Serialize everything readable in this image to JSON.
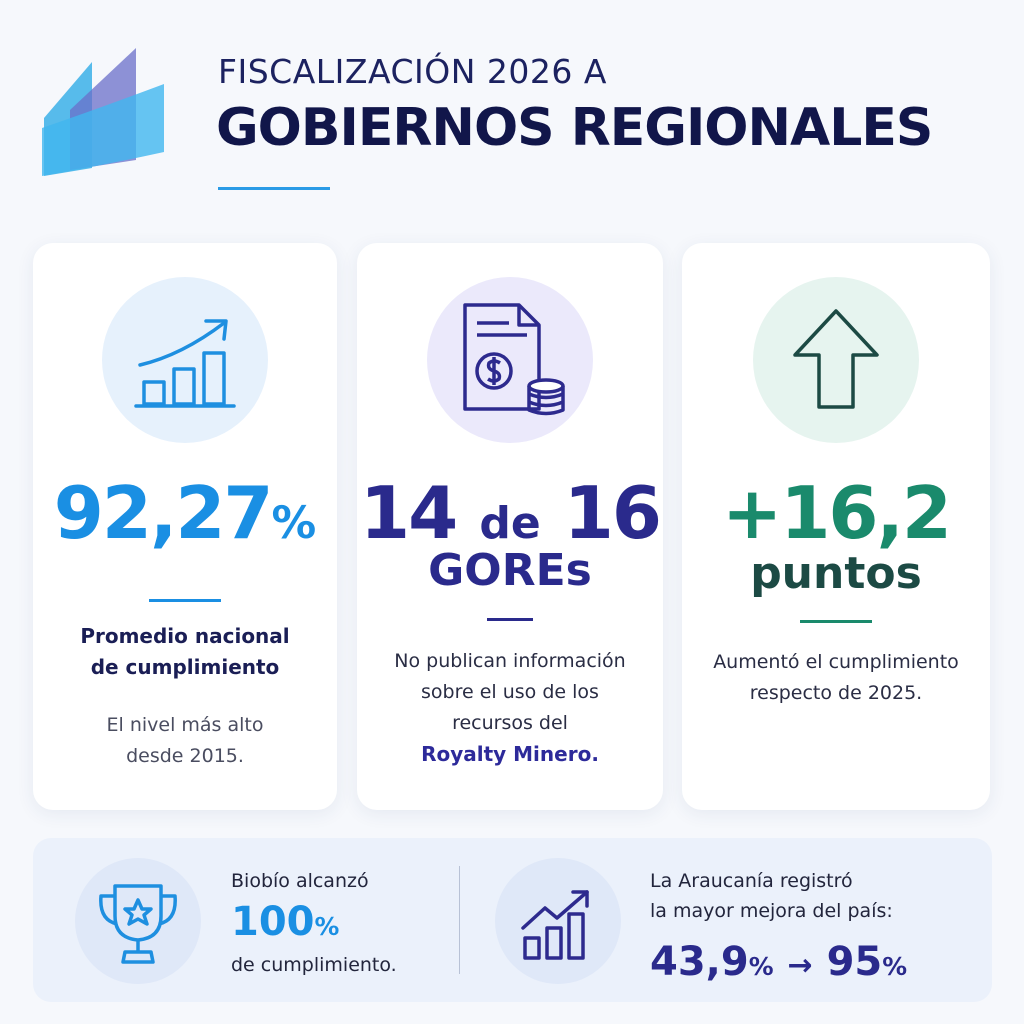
{
  "header": {
    "kicker": "FISCALIZACIÓN 2026 A",
    "title": "GOBIERNOS REGIONALES"
  },
  "cards": [
    {
      "stat": "92,27",
      "unit": "%",
      "label": [
        "Promedio nacional",
        "de cumplimiento"
      ],
      "note": [
        "El nivel más alto",
        "desde 2015."
      ]
    },
    {
      "stat": "14",
      "connector": "de",
      "stat_end": "16",
      "stat2": "GOREs",
      "body": [
        "No publican información",
        "sobre el uso de los",
        "recursos del"
      ],
      "highlight": "Royalty Minero."
    },
    {
      "stat": "+16,2",
      "stat2": "puntos",
      "body": [
        "Aumentó el cumplimiento",
        "respecto de 2025."
      ]
    }
  ],
  "footer": {
    "left": {
      "intro": "Biobío alcanzó",
      "stat": "100",
      "unit": "%",
      "outro": "de cumplimiento."
    },
    "right": {
      "lines": [
        "La Araucanía registró",
        "la mayor mejora del país:"
      ],
      "from": "43,9",
      "from_unit": "%",
      "arrow": "→",
      "to": "95",
      "to_unit": "%"
    }
  }
}
